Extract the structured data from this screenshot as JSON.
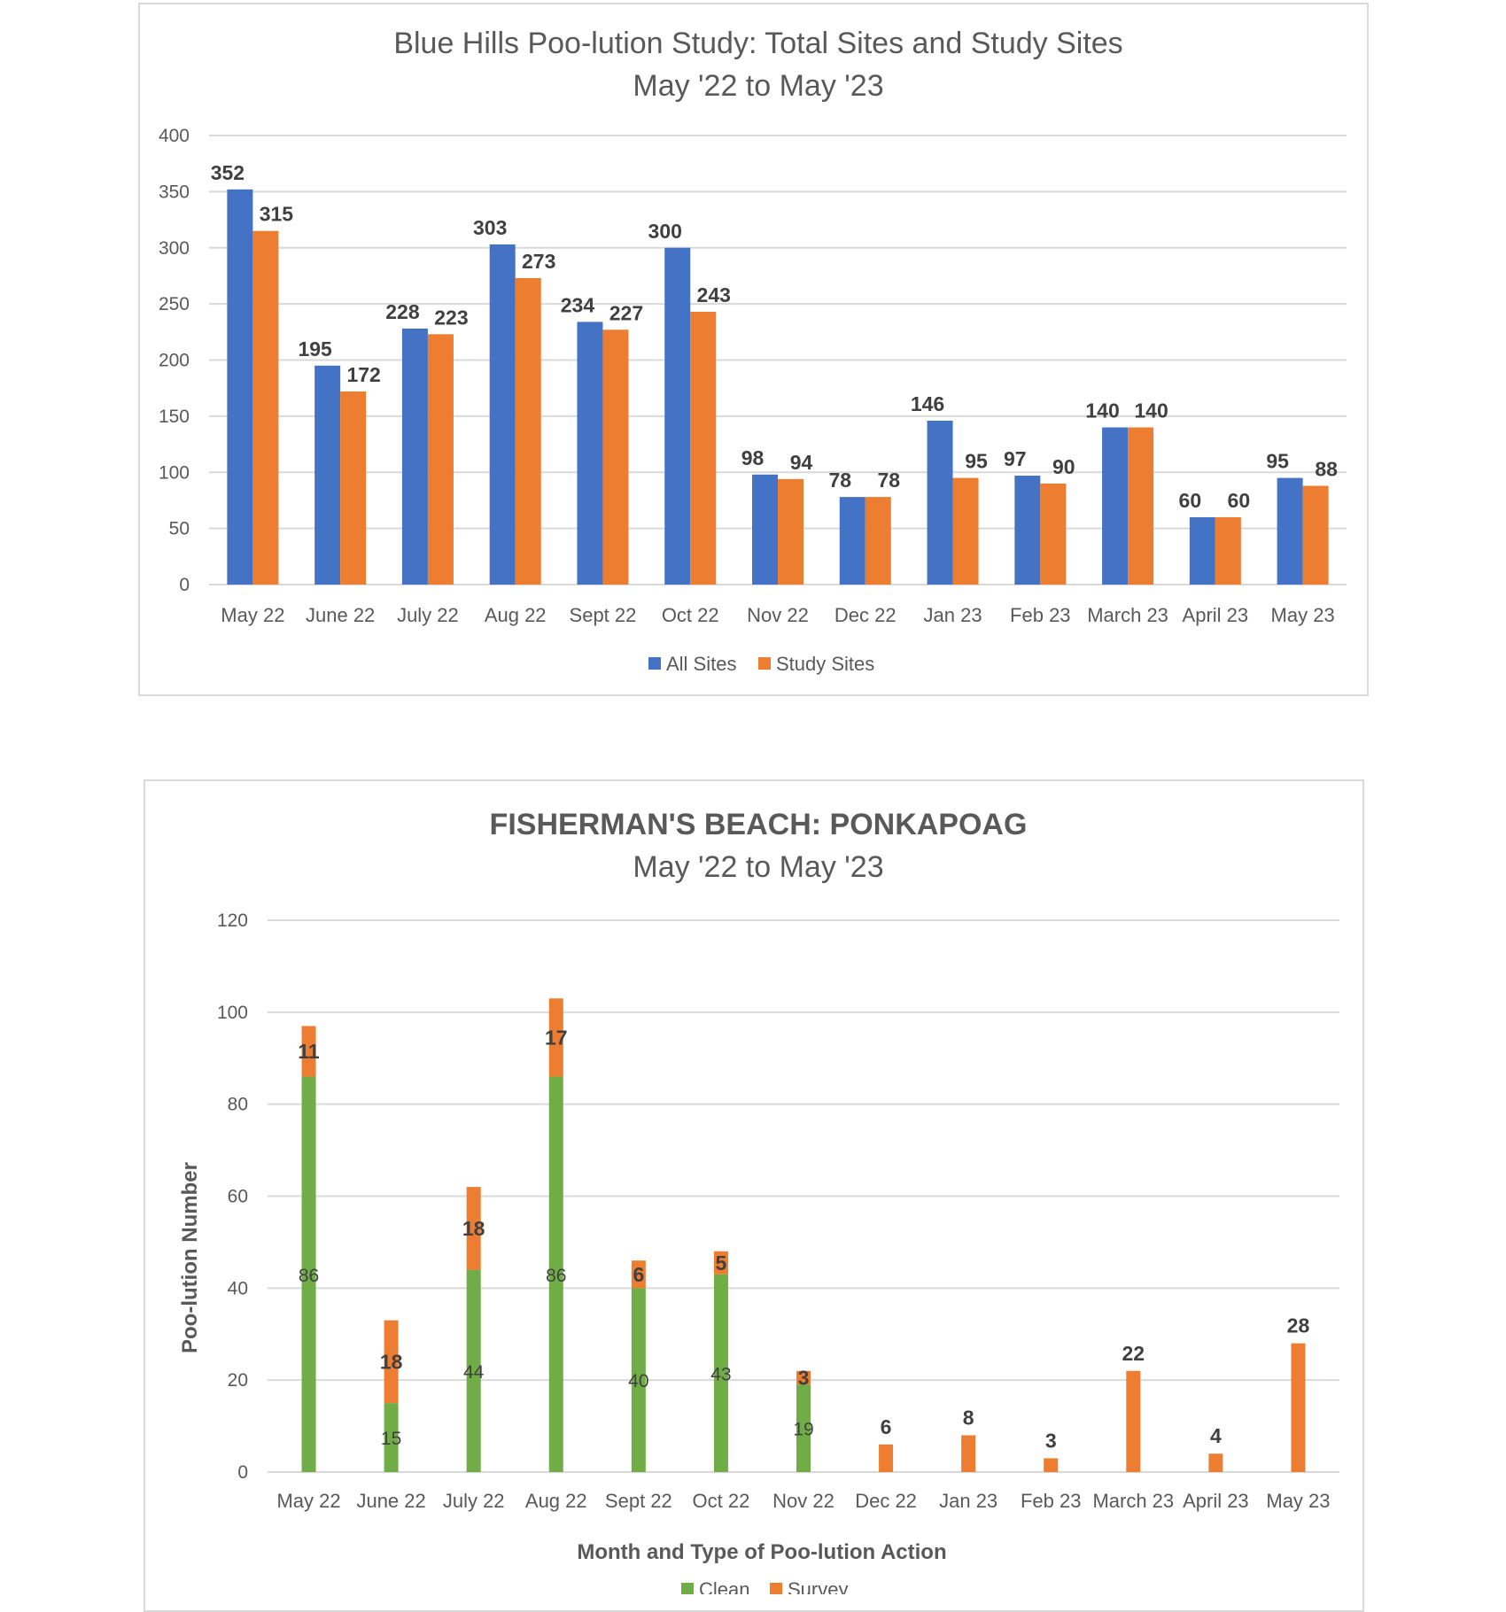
{
  "colors": {
    "blue": "#4472C4",
    "orange": "#ED7D31",
    "green": "#70AD47",
    "grid": "#d9d9d9",
    "text": "#595959"
  },
  "chart_data": [
    {
      "type": "bar",
      "title": "Blue Hills Poo-lution Study: Total Sites and Study Sites",
      "subtitle": "May '22 to May '23",
      "categories": [
        "May 22",
        "June 22",
        "July 22",
        "Aug 22",
        "Sept 22",
        "Oct 22",
        "Nov 22",
        "Dec 22",
        "Jan 23",
        "Feb 23",
        "March 23",
        "April 23",
        "May 23"
      ],
      "series": [
        {
          "name": "All Sites",
          "color": "#4472C4",
          "values": [
            352,
            195,
            228,
            303,
            234,
            300,
            98,
            78,
            146,
            97,
            140,
            60,
            95
          ]
        },
        {
          "name": "Study Sites",
          "color": "#ED7D31",
          "values": [
            315,
            172,
            223,
            273,
            227,
            243,
            94,
            78,
            95,
            90,
            140,
            60,
            88
          ]
        }
      ],
      "ylim": [
        0,
        400
      ],
      "yticks": [
        0,
        50,
        100,
        150,
        200,
        250,
        300,
        350,
        400
      ],
      "grid": true,
      "legend": "bottom"
    },
    {
      "type": "bar",
      "stacked": true,
      "title": "FISHERMAN'S BEACH: PONKAPOAG",
      "subtitle": "May '22 to May '23",
      "xlabel": "Month and Type of Poo-lution Action",
      "ylabel": "Poo-lution Number",
      "categories": [
        "May 22",
        "June 22",
        "July 22",
        "Aug 22",
        "Sept 22",
        "Oct 22",
        "Nov 22",
        "Dec 22",
        "Jan 23",
        "Feb 23",
        "March 23",
        "April 23",
        "May 23"
      ],
      "series": [
        {
          "name": "Clean",
          "color": "#70AD47",
          "values": [
            86,
            15,
            44,
            86,
            40,
            43,
            19,
            null,
            null,
            null,
            null,
            null,
            null
          ]
        },
        {
          "name": "Survey",
          "color": "#ED7D31",
          "values": [
            11,
            18,
            18,
            17,
            6,
            5,
            3,
            6,
            8,
            3,
            22,
            4,
            28
          ]
        }
      ],
      "ylim": [
        0,
        120
      ],
      "yticks": [
        0,
        20,
        40,
        60,
        80,
        100,
        120
      ],
      "grid": true,
      "legend": "bottom"
    }
  ]
}
